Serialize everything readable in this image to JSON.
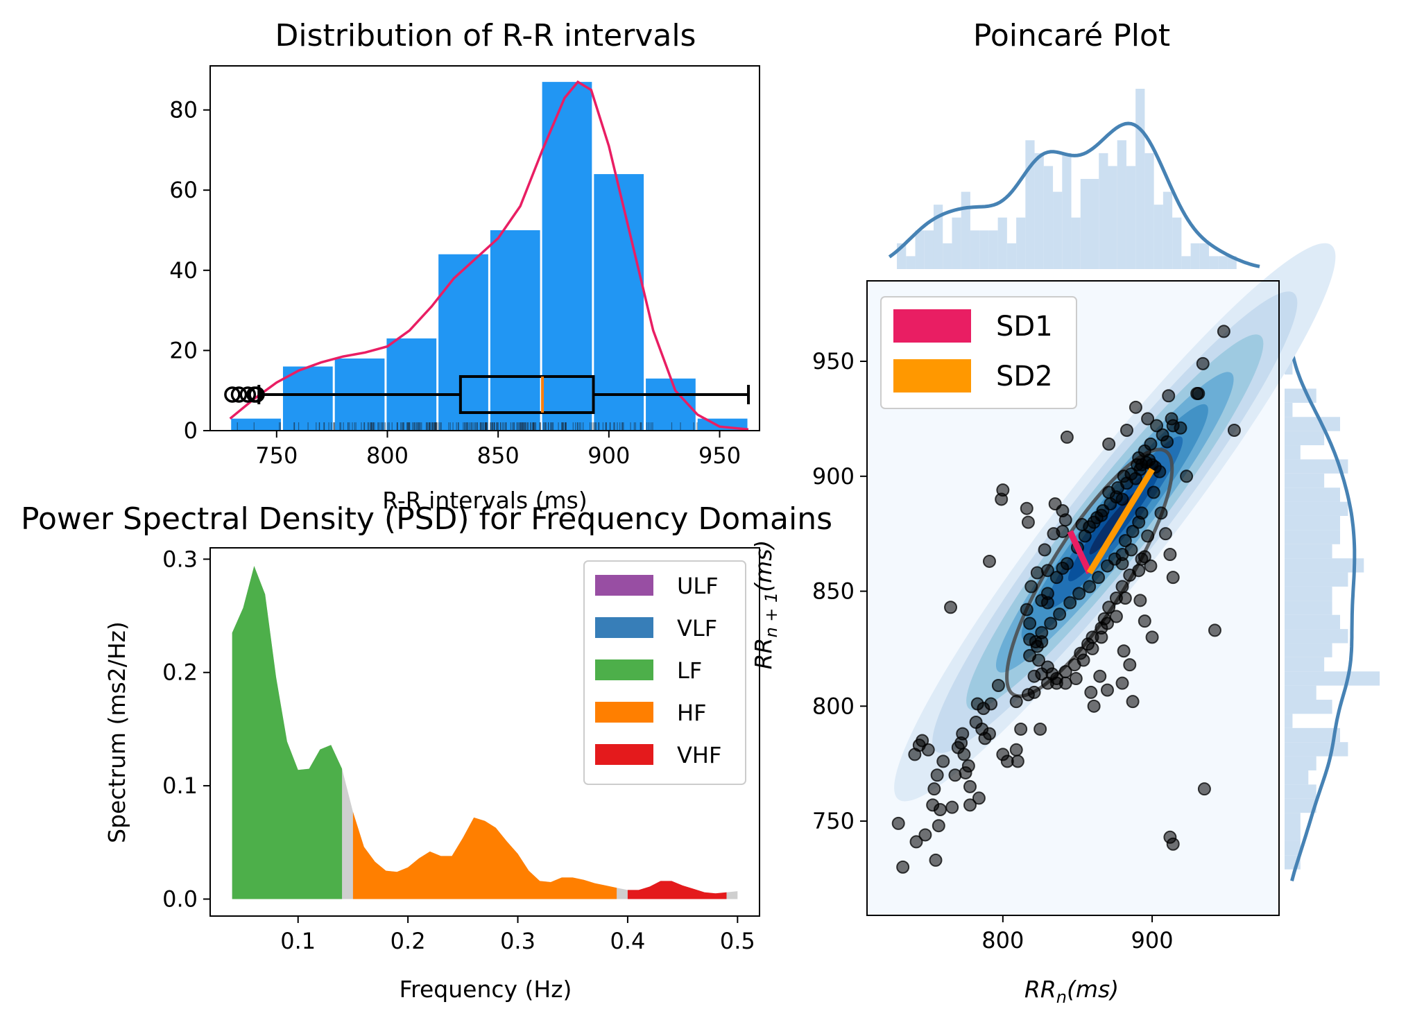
{
  "colors": {
    "hist_bar": "#2196F3",
    "kde_line": "#E91E63",
    "box_median": "#FF7F0E",
    "ulf": "#984EA3",
    "vlf": "#377EB8",
    "lf": "#4DAF4A",
    "hf": "#FF7F00",
    "vhf": "#E41A1C",
    "psd_gap": "#CFCFCF",
    "sd1": "#E91E63",
    "sd2": "#FF9800",
    "poincare_marginal": "#4682B4",
    "poincare_marginal_fill": "#C6DBEF",
    "kde_levels": [
      "#F4F9FE",
      "#DEEBF7",
      "#C6DBEF",
      "#9ECAE1",
      "#6BAED6",
      "#4292C6",
      "#2171B5",
      "#08519C",
      "#08306B"
    ]
  },
  "chart_data": [
    {
      "id": "rr-distribution",
      "type": "bar",
      "title": "Distribution of R-R intervals",
      "xlabel": "R-R intervals (ms)",
      "ylabel": "",
      "xlim": [
        720,
        968
      ],
      "ylim": [
        0,
        91
      ],
      "xticks": [
        750,
        800,
        850,
        900,
        950
      ],
      "yticks": [
        0,
        20,
        40,
        60,
        80
      ],
      "bins": [
        {
          "x0": 729,
          "x1": 752.4,
          "count": 3
        },
        {
          "x0": 752.4,
          "x1": 775.8,
          "count": 16
        },
        {
          "x0": 775.8,
          "x1": 799.2,
          "count": 18
        },
        {
          "x0": 799.2,
          "x1": 822.6,
          "count": 23
        },
        {
          "x0": 822.6,
          "x1": 846.0,
          "count": 44
        },
        {
          "x0": 846.0,
          "x1": 869.4,
          "count": 50
        },
        {
          "x0": 869.4,
          "x1": 892.8,
          "count": 87
        },
        {
          "x0": 892.8,
          "x1": 916.2,
          "count": 64
        },
        {
          "x0": 916.2,
          "x1": 939.6,
          "count": 13
        },
        {
          "x0": 939.6,
          "x1": 963.0,
          "count": 3
        }
      ],
      "kde": {
        "x": [
          729,
          740,
          750,
          760,
          770,
          780,
          790,
          800,
          810,
          820,
          830,
          840,
          850,
          860,
          870,
          880,
          886,
          892,
          900,
          910,
          920,
          930,
          940,
          950,
          963
        ],
        "y": [
          3,
          8,
          12,
          15,
          17,
          18.5,
          19.5,
          21,
          25,
          31,
          38,
          43,
          48,
          56,
          70,
          83,
          87,
          85,
          71,
          48,
          25,
          10,
          4,
          1,
          0.3
        ]
      },
      "boxplot": {
        "whisker_low": 742,
        "q1": 833,
        "median": 870,
        "q3": 893,
        "whisker_high": 963,
        "fliers": [
          730,
          733,
          737,
          740,
          741
        ],
        "y": 9
      },
      "rug_range": [
        729,
        963
      ]
    },
    {
      "id": "psd",
      "type": "area",
      "title": "Power Spectral Density (PSD) for Frequency Domains",
      "xlabel": "Frequency (Hz)",
      "ylabel": "Spectrum (ms2/Hz)",
      "xlim": [
        0.02,
        0.52
      ],
      "ylim": [
        -0.015,
        0.31
      ],
      "xticks": [
        0.1,
        0.2,
        0.3,
        0.4,
        0.5
      ],
      "yticks": [
        0.0,
        0.1,
        0.2,
        0.3
      ],
      "legend": [
        "ULF",
        "VLF",
        "LF",
        "HF",
        "VHF"
      ],
      "legend_loc": "upper right",
      "spectrum": {
        "f": [
          0.04,
          0.05,
          0.06,
          0.07,
          0.08,
          0.09,
          0.1,
          0.11,
          0.12,
          0.13,
          0.14,
          0.15,
          0.16,
          0.17,
          0.18,
          0.19,
          0.2,
          0.21,
          0.22,
          0.23,
          0.24,
          0.25,
          0.26,
          0.27,
          0.28,
          0.29,
          0.3,
          0.31,
          0.32,
          0.33,
          0.34,
          0.35,
          0.36,
          0.37,
          0.38,
          0.39,
          0.4,
          0.41,
          0.42,
          0.43,
          0.44,
          0.45,
          0.46,
          0.47,
          0.48,
          0.49,
          0.5
        ],
        "p": [
          0.235,
          0.257,
          0.294,
          0.269,
          0.196,
          0.139,
          0.114,
          0.115,
          0.132,
          0.136,
          0.115,
          0.077,
          0.046,
          0.033,
          0.025,
          0.024,
          0.028,
          0.036,
          0.042,
          0.038,
          0.038,
          0.054,
          0.072,
          0.069,
          0.063,
          0.051,
          0.04,
          0.025,
          0.016,
          0.015,
          0.019,
          0.019,
          0.017,
          0.014,
          0.012,
          0.01,
          0.008,
          0.008,
          0.011,
          0.016,
          0.016,
          0.012,
          0.009,
          0.006,
          0.005,
          0.006,
          0.007
        ]
      },
      "bands": [
        {
          "name": "LF",
          "range": [
            0.04,
            0.14
          ]
        },
        {
          "name": "HF",
          "range": [
            0.15,
            0.39
          ]
        },
        {
          "name": "VHF",
          "range": [
            0.4,
            0.49
          ]
        }
      ]
    },
    {
      "id": "poincare",
      "type": "scatter",
      "title": "Poincaré Plot",
      "xlabel_base": "RR",
      "xlabel_sub": "n",
      "xlabel_rest": "(ms)",
      "ylabel_base": "RR",
      "ylabel_sub": "n + 1",
      "ylabel_rest": "(ms)",
      "xlim": [
        709,
        985
      ],
      "ylim": [
        709,
        985
      ],
      "xticks": [
        800,
        900
      ],
      "yticks": [
        750,
        800,
        850,
        900,
        950
      ],
      "legend": [
        "SD1",
        "SD2"
      ],
      "legend_loc": "upper left",
      "center": [
        858,
        858
      ],
      "sd1": 18,
      "sd2": 68,
      "sd1_end": [
        845,
        876
      ],
      "sd2_end": [
        900,
        903
      ],
      "points": [
        [
          733,
          730
        ],
        [
          730,
          749
        ],
        [
          742,
          741
        ],
        [
          748,
          744
        ],
        [
          755,
          733
        ],
        [
          757,
          748
        ],
        [
          753,
          757
        ],
        [
          758,
          755
        ],
        [
          754,
          764
        ],
        [
          756,
          770
        ],
        [
          760,
          776
        ],
        [
          750,
          781
        ],
        [
          746,
          785
        ],
        [
          744,
          783
        ],
        [
          741,
          779
        ],
        [
          770,
          782
        ],
        [
          772,
          784
        ],
        [
          773,
          788
        ],
        [
          774,
          779
        ],
        [
          775,
          771
        ],
        [
          778,
          765
        ],
        [
          777,
          774
        ],
        [
          768,
          770
        ],
        [
          766,
          756
        ],
        [
          778,
          757
        ],
        [
          784,
          760
        ],
        [
          782,
          793
        ],
        [
          786,
          790
        ],
        [
          788,
          786
        ],
        [
          791,
          788
        ],
        [
          787,
          799
        ],
        [
          783,
          801
        ],
        [
          792,
          801
        ],
        [
          797,
          809
        ],
        [
          800,
          779
        ],
        [
          803,
          776
        ],
        [
          809,
          781
        ],
        [
          810,
          776
        ],
        [
          812,
          790
        ],
        [
          809,
          802
        ],
        [
          817,
          805
        ],
        [
          821,
          806
        ],
        [
          821,
          813
        ],
        [
          818,
          822
        ],
        [
          818,
          829
        ],
        [
          818,
          836
        ],
        [
          816,
          842
        ],
        [
          819,
          852
        ],
        [
          823,
          858
        ],
        [
          828,
          868
        ],
        [
          830,
          859
        ],
        [
          834,
          875
        ],
        [
          840,
          876
        ],
        [
          840,
          885
        ],
        [
          835,
          888
        ],
        [
          842,
          881
        ],
        [
          853,
          879
        ],
        [
          861,
          880
        ],
        [
          866,
          883
        ],
        [
          871,
          893
        ],
        [
          876,
          891
        ],
        [
          880,
          890
        ],
        [
          883,
          897
        ],
        [
          890,
          905
        ],
        [
          893,
          905
        ],
        [
          896,
          906
        ],
        [
          900,
          905
        ],
        [
          902,
          904
        ],
        [
          905,
          902
        ],
        [
          898,
          907
        ],
        [
          892,
          903
        ],
        [
          889,
          899
        ],
        [
          893,
          884
        ],
        [
          891,
          880
        ],
        [
          887,
          876
        ],
        [
          882,
          872
        ],
        [
          886,
          868
        ],
        [
          893,
          864
        ],
        [
          891,
          859
        ],
        [
          885,
          857
        ],
        [
          880,
          852
        ],
        [
          876,
          847
        ],
        [
          871,
          843
        ],
        [
          868,
          838
        ],
        [
          866,
          834
        ],
        [
          860,
          830
        ],
        [
          857,
          827
        ],
        [
          852,
          823
        ],
        [
          848,
          818
        ],
        [
          842,
          815
        ],
        [
          836,
          812
        ],
        [
          830,
          810
        ],
        [
          826,
          814
        ],
        [
          824,
          820
        ],
        [
          823,
          826
        ],
        [
          826,
          832
        ],
        [
          832,
          836
        ],
        [
          838,
          840
        ],
        [
          845,
          845
        ],
        [
          851,
          849
        ],
        [
          858,
          852
        ],
        [
          864,
          856
        ],
        [
          870,
          861
        ],
        [
          875,
          864
        ],
        [
          880,
          866
        ],
        [
          880,
          862
        ],
        [
          882,
          847
        ],
        [
          876,
          839
        ],
        [
          870,
          836
        ],
        [
          866,
          830
        ],
        [
          860,
          825
        ],
        [
          854,
          820
        ],
        [
          849,
          812
        ],
        [
          842,
          810
        ],
        [
          836,
          810
        ],
        [
          833,
          814
        ],
        [
          830,
          817
        ],
        [
          822,
          828
        ],
        [
          826,
          846
        ],
        [
          830,
          849
        ],
        [
          836,
          856
        ],
        [
          840,
          860
        ],
        [
          843,
          862
        ],
        [
          850,
          869
        ],
        [
          855,
          874
        ],
        [
          858,
          878
        ],
        [
          863,
          882
        ],
        [
          867,
          885
        ],
        [
          872,
          888
        ],
        [
          877,
          895
        ],
        [
          881,
          900
        ],
        [
          886,
          901
        ],
        [
          891,
          908
        ],
        [
          895,
          911
        ],
        [
          899,
          914
        ],
        [
          903,
          922
        ],
        [
          907,
          918
        ],
        [
          910,
          915
        ],
        [
          913,
          925
        ],
        [
          914,
          922
        ],
        [
          919,
          921
        ],
        [
          923,
          900
        ],
        [
          930,
          936
        ],
        [
          931,
          936
        ],
        [
          934,
          949
        ],
        [
          948,
          963
        ],
        [
          955,
          920
        ],
        [
          942,
          833
        ],
        [
          935,
          764
        ],
        [
          912,
          743
        ],
        [
          914,
          740
        ],
        [
          887,
          802
        ],
        [
          914,
          856
        ],
        [
          912,
          866
        ],
        [
          909,
          875
        ],
        [
          906,
          884
        ],
        [
          901,
          893
        ],
        [
          897,
          874
        ],
        [
          895,
          865
        ],
        [
          899,
          861
        ],
        [
          892,
          846
        ],
        [
          895,
          837
        ],
        [
          900,
          830
        ],
        [
          881,
          824
        ],
        [
          885,
          818
        ],
        [
          880,
          810
        ],
        [
          870,
          807
        ],
        [
          865,
          813
        ],
        [
          859,
          806
        ],
        [
          861,
          800
        ],
        [
          825,
          790
        ],
        [
          826,
          828
        ],
        [
          830,
          845
        ],
        [
          817,
          880
        ],
        [
          816,
          886
        ],
        [
          799,
          890
        ],
        [
          800,
          894
        ],
        [
          791,
          863
        ],
        [
          765,
          843
        ],
        [
          803,
          937
        ],
        [
          843,
          917
        ],
        [
          871,
          914
        ],
        [
          889,
          930
        ],
        [
          911,
          935
        ],
        [
          897,
          925
        ],
        [
          883,
          920
        ]
      ]
    }
  ]
}
